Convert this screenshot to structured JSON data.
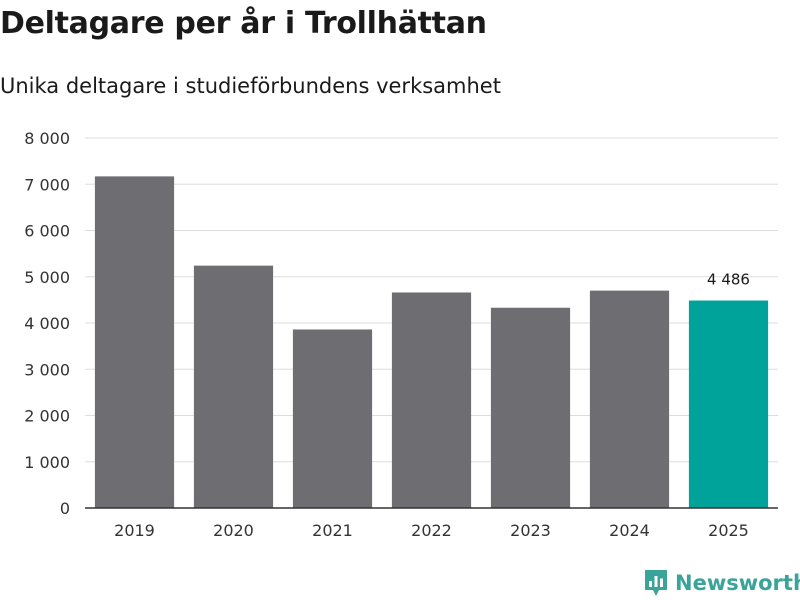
{
  "header": {
    "title": "Deltagare per år i Trollhättan",
    "subtitle": "Unika deltagare i studieförbundens verksamhet"
  },
  "chart_data": {
    "type": "bar",
    "title": "Deltagare per år i Trollhättan",
    "subtitle": "Unika deltagare i studieförbundens verksamhet",
    "xlabel": "",
    "ylabel": "",
    "categories": [
      "2019",
      "2020",
      "2021",
      "2022",
      "2023",
      "2024",
      "2025"
    ],
    "values": [
      7170,
      5240,
      3860,
      4660,
      4330,
      4700,
      4486
    ],
    "ylim": [
      0,
      8000
    ],
    "yticks": [
      0,
      1000,
      2000,
      3000,
      4000,
      5000,
      6000,
      7000,
      8000
    ],
    "ytick_labels": [
      "0",
      "1 000",
      "2 000",
      "3 000",
      "4 000",
      "5 000",
      "6 000",
      "7 000",
      "8 000"
    ],
    "grid": true,
    "annotations": [
      {
        "category": "2025",
        "label": "4 486"
      }
    ],
    "colors": {
      "default_bar": "#6e6d72",
      "highlight_bar": "#00a39a",
      "grid": "#dddddd",
      "axis": "#333333"
    },
    "highlight_index": 6
  },
  "brand": {
    "name": "Newsworthy",
    "icon": "newsworthy-logo-icon",
    "color": "#3aa39a"
  }
}
